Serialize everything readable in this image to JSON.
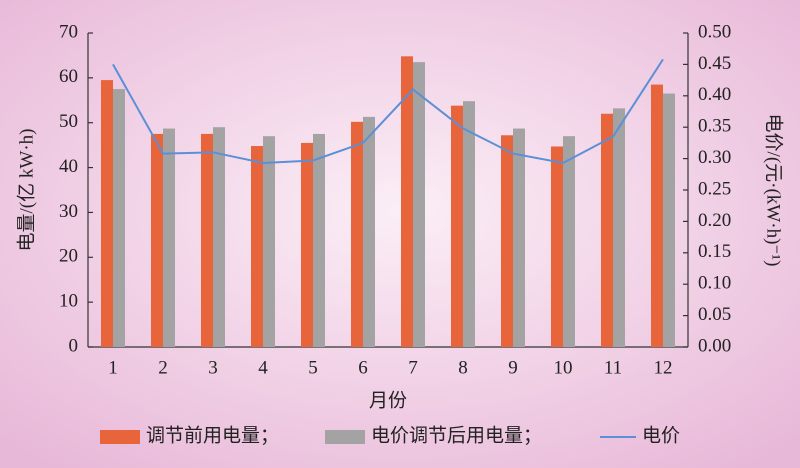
{
  "chart_data": {
    "type": "bar_line",
    "categories": [
      "1",
      "2",
      "3",
      "4",
      "5",
      "6",
      "7",
      "8",
      "9",
      "10",
      "11",
      "12"
    ],
    "xlabel": "月份",
    "ylabel": "电量/(亿 kW·h)",
    "y2label": "电价/(元·(kW·h)⁻¹)",
    "ylim": [
      0,
      70
    ],
    "yticks": [
      0,
      10,
      20,
      30,
      40,
      50,
      60,
      70
    ],
    "y2lim": [
      0,
      0.5
    ],
    "y2ticks": [
      {
        "value": 0,
        "label": "0.00"
      },
      {
        "value": 0.05,
        "label": "0.05"
      },
      {
        "value": 0.1,
        "label": "0.10"
      },
      {
        "value": 0.15,
        "label": "0.15"
      },
      {
        "value": 0.2,
        "label": "0.20"
      },
      {
        "value": 0.25,
        "label": "0.25"
      },
      {
        "value": 0.3,
        "label": "0.30"
      },
      {
        "value": 0.35,
        "label": "0.35"
      },
      {
        "value": 0.4,
        "label": "0.40"
      },
      {
        "value": 0.45,
        "label": "0.45"
      },
      {
        "value": 0.5,
        "label": "0.50"
      }
    ],
    "series": [
      {
        "name": "调节前用电量；",
        "color": "#e8643a",
        "kind": "bar",
        "values": [
          59.5,
          47.5,
          47.5,
          44.8,
          45.5,
          50.2,
          64.8,
          53.8,
          47.2,
          44.7,
          52.0,
          58.5
        ]
      },
      {
        "name": "电价调节后用电量；",
        "color": "#a3a3a3",
        "kind": "bar",
        "values": [
          57.5,
          48.7,
          49.0,
          47.0,
          47.5,
          51.3,
          63.5,
          54.8,
          48.7,
          47.0,
          53.2,
          56.5
        ]
      },
      {
        "name": "电价",
        "color": "#5b8fd6",
        "kind": "line",
        "axis": "y2",
        "values": [
          0.45,
          0.308,
          0.31,
          0.293,
          0.297,
          0.325,
          0.41,
          0.348,
          0.308,
          0.293,
          0.335,
          0.458
        ]
      }
    ]
  }
}
